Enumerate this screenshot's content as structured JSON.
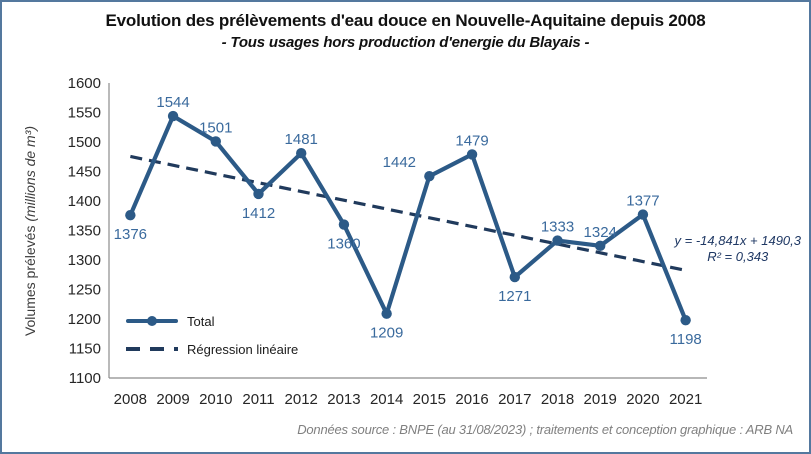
{
  "title": "Evolution des prélèvements d'eau douce en Nouvelle-Aquitaine depuis 2008",
  "subtitle": "- Tous usages hors production d'energie du Blayais -",
  "y_axis": {
    "label_main": "Volumes prélevés",
    "label_unit": "(millions de m³)"
  },
  "legend": {
    "total_label": "Total",
    "regression_label": "Régression linéaire"
  },
  "trendline_annotation": {
    "equation": "y = -14,841x + 1490,3",
    "r_squared": "R² = 0,343"
  },
  "footer": "Données source : BNPE (au 31/08/2023) ; traitements et conception graphique : ARB NA",
  "colors": {
    "series_line": "#2C5A87",
    "point_label": "#3A6A9D",
    "trend_line": "#203A5C",
    "axis_line": "#8C8C8C",
    "tick_label": "#262626",
    "frame_border": "#54789E",
    "footer_text": "#808080",
    "equation_text": "#1F3864"
  },
  "chart_data": {
    "type": "line",
    "title": "Evolution des prélèvements d'eau douce en Nouvelle-Aquitaine depuis 2008",
    "subtitle": "- Tous usages hors production d'energie du Blayais -",
    "xlabel": "",
    "ylabel": "Volumes prélevés (millions de m³)",
    "categories": [
      2008,
      2009,
      2010,
      2011,
      2012,
      2013,
      2014,
      2015,
      2016,
      2017,
      2018,
      2019,
      2020,
      2021
    ],
    "series": [
      {
        "name": "Total",
        "values": [
          1376,
          1544,
          1501,
          1412,
          1481,
          1360,
          1209,
          1442,
          1479,
          1271,
          1333,
          1324,
          1377,
          1198
        ]
      }
    ],
    "trendline": {
      "name": "Régression linéaire",
      "slope": -14.841,
      "intercept": 1490.3,
      "r_squared": 0.343,
      "style": "dashed"
    },
    "ylim": [
      1100,
      1600
    ],
    "ytick_step": 50,
    "grid": false,
    "legend_position": "inside-lower-left",
    "point_label_layout": [
      {
        "side": "below",
        "dx": 0
      },
      {
        "side": "above",
        "dx": 0
      },
      {
        "side": "above",
        "dx": 0
      },
      {
        "side": "below",
        "dx": 0
      },
      {
        "side": "above",
        "dx": 0
      },
      {
        "side": "below",
        "dx": 0
      },
      {
        "side": "below",
        "dx": 0
      },
      {
        "side": "above",
        "dx": -30
      },
      {
        "side": "above",
        "dx": 0
      },
      {
        "side": "below",
        "dx": 0
      },
      {
        "side": "above",
        "dx": 0
      },
      {
        "side": "above",
        "dx": 0
      },
      {
        "side": "above",
        "dx": 0
      },
      {
        "side": "below",
        "dx": 0
      }
    ]
  }
}
